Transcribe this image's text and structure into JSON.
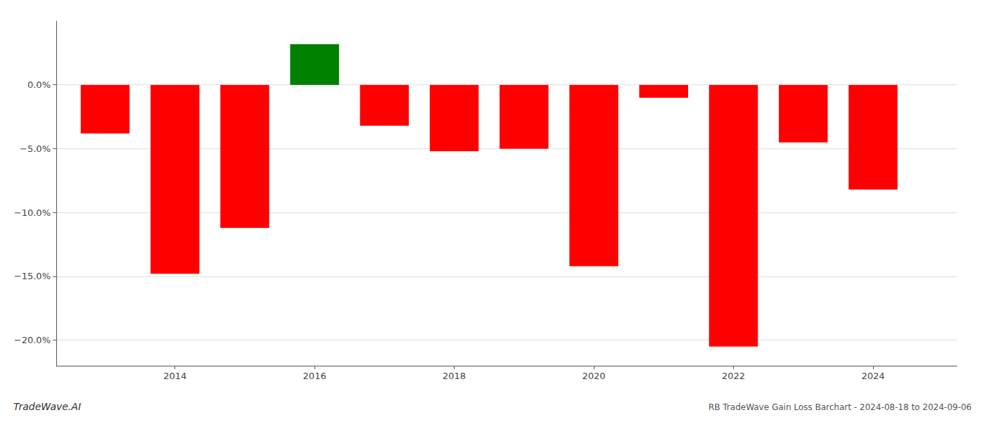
{
  "chart_data": {
    "type": "bar",
    "title": "RB TradeWave Gain Loss Barchart - 2024-08-18 to 2024-09-06",
    "annotations": [
      "TradeWave.AI"
    ],
    "x": [
      2013,
      2014,
      2015,
      2016,
      2017,
      2018,
      2019,
      2020,
      2021,
      2022,
      2023,
      2024
    ],
    "values": [
      -3.8,
      -14.8,
      -11.2,
      3.2,
      -3.2,
      -5.2,
      -5.0,
      -14.2,
      -1.0,
      -20.5,
      -4.5,
      -8.2
    ],
    "colors": [
      "#ff0000",
      "#ff0000",
      "#ff0000",
      "#008000",
      "#ff0000",
      "#ff0000",
      "#ff0000",
      "#ff0000",
      "#ff0000",
      "#ff0000",
      "#ff0000",
      "#ff0000"
    ],
    "xlim": [
      2012.3,
      2025.2
    ],
    "xticks": [
      2014,
      2016,
      2018,
      2020,
      2022,
      2024
    ],
    "ylim": [
      -22,
      5
    ],
    "yticks": [
      {
        "value": 0.0,
        "label": "0.0%"
      },
      {
        "value": -5.0,
        "label": "−5.0%"
      },
      {
        "value": -10.0,
        "label": "−10.0%"
      },
      {
        "value": -15.0,
        "label": "−15.0%"
      },
      {
        "value": -20.0,
        "label": "−20.0%"
      }
    ],
    "grid": true
  }
}
